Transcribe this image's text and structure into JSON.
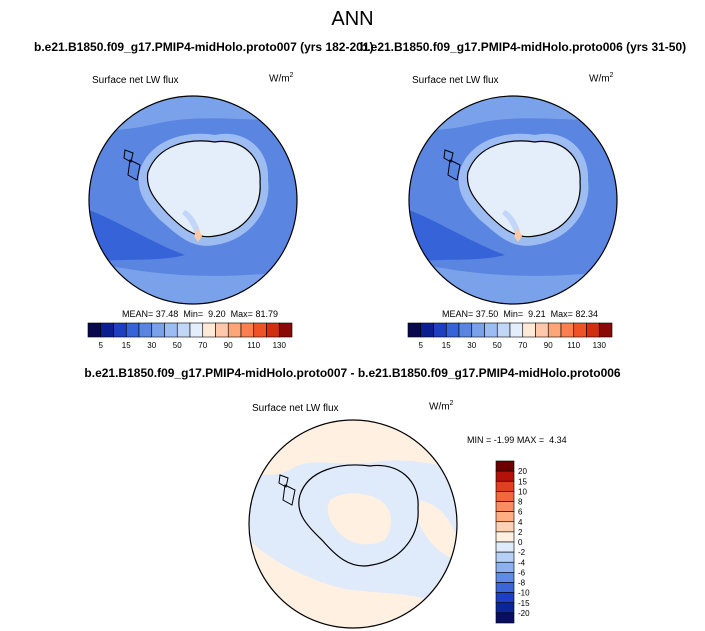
{
  "figure": {
    "main_title": "ANN",
    "left_title": "b.e21.B1850.f09_g17.PMIP4-midHolo.proto007 (yrs 182-201)",
    "right_title": "b.e21.B1850.f09_g17.PMIP4-midHolo.proto006 (yrs 31-50)",
    "diff_title": "b.e21.B1850.f09_g17.PMIP4-midHolo.proto007 - b.e21.B1850.f09_g17.PMIP4-midHolo.proto006",
    "variable": "Surface net LW flux",
    "units_base": "W/m",
    "units_exp": "2"
  },
  "panels": {
    "left": {
      "mean_label": "MEAN=",
      "mean": "37.48",
      "min_label": "Min=",
      "min": "9.20",
      "max_label": "Max=",
      "max": "81.79"
    },
    "right": {
      "mean_label": "MEAN=",
      "mean": "37.50",
      "min_label": "Min=",
      "min": "9.21",
      "max_label": "Max=",
      "max": "82.34"
    },
    "diff": {
      "min_label": "MIN =",
      "min": "-1.99",
      "max_label": "MAX =",
      "max": "4.34"
    }
  },
  "chart_data": [
    {
      "type": "heatmap",
      "projection": "south-polar-stereographic",
      "title": "b.e21.B1850.f09_g17.PMIP4-midHolo.proto007 (yrs 182-201)",
      "variable": "Surface net LW flux",
      "units": "W/m2",
      "stats": {
        "mean": 37.48,
        "min": 9.2,
        "max": 81.79
      },
      "colorbar": {
        "orientation": "horizontal",
        "ticks": [
          5,
          15,
          30,
          50,
          70,
          90,
          110,
          130
        ],
        "levels": [
          5,
          10,
          15,
          20,
          30,
          40,
          50,
          60,
          70,
          80,
          90,
          100,
          110,
          120,
          130
        ],
        "colors": [
          "#08084a",
          "#0c1f8f",
          "#1c3fc4",
          "#3763d9",
          "#5a86e2",
          "#7aa2ea",
          "#9dbcf2",
          "#c2d6f7",
          "#e4eefb",
          "#ffe9d8",
          "#ffc8a8",
          "#ffa577",
          "#fb7f4e",
          "#ef5226",
          "#d42e12",
          "#8b0a05"
        ]
      }
    },
    {
      "type": "heatmap",
      "projection": "south-polar-stereographic",
      "title": "b.e21.B1850.f09_g17.PMIP4-midHolo.proto006 (yrs 31-50)",
      "variable": "Surface net LW flux",
      "units": "W/m2",
      "stats": {
        "mean": 37.5,
        "min": 9.21,
        "max": 82.34
      },
      "colorbar": {
        "orientation": "horizontal",
        "ticks": [
          5,
          15,
          30,
          50,
          70,
          90,
          110,
          130
        ],
        "levels": [
          5,
          10,
          15,
          20,
          30,
          40,
          50,
          60,
          70,
          80,
          90,
          100,
          110,
          120,
          130
        ],
        "colors": [
          "#08084a",
          "#0c1f8f",
          "#1c3fc4",
          "#3763d9",
          "#5a86e2",
          "#7aa2ea",
          "#9dbcf2",
          "#c2d6f7",
          "#e4eefb",
          "#ffe9d8",
          "#ffc8a8",
          "#ffa577",
          "#fb7f4e",
          "#ef5226",
          "#d42e12",
          "#8b0a05"
        ]
      }
    },
    {
      "type": "heatmap",
      "projection": "south-polar-stereographic",
      "title": "b.e21.B1850.f09_g17.PMIP4-midHolo.proto007 - b.e21.B1850.f09_g17.PMIP4-midHolo.proto006",
      "variable": "Surface net LW flux",
      "units": "W/m2",
      "stats": {
        "min": -1.99,
        "max": 4.34
      },
      "colorbar": {
        "orientation": "vertical",
        "ticks": [
          20,
          15,
          10,
          8,
          6,
          4,
          2,
          0,
          -2,
          -4,
          -6,
          -8,
          -10,
          -15,
          -20
        ],
        "colors": [
          "#6b0000",
          "#b3120b",
          "#e0401d",
          "#f2683b",
          "#fb8c5d",
          "#ffae83",
          "#ffd0b1",
          "#fff0e2",
          "#dfeafb",
          "#b6cff5",
          "#8bb1ee",
          "#5e8ce4",
          "#3a66d8",
          "#1d3fc2",
          "#0d2597",
          "#0a0e63"
        ]
      }
    }
  ]
}
